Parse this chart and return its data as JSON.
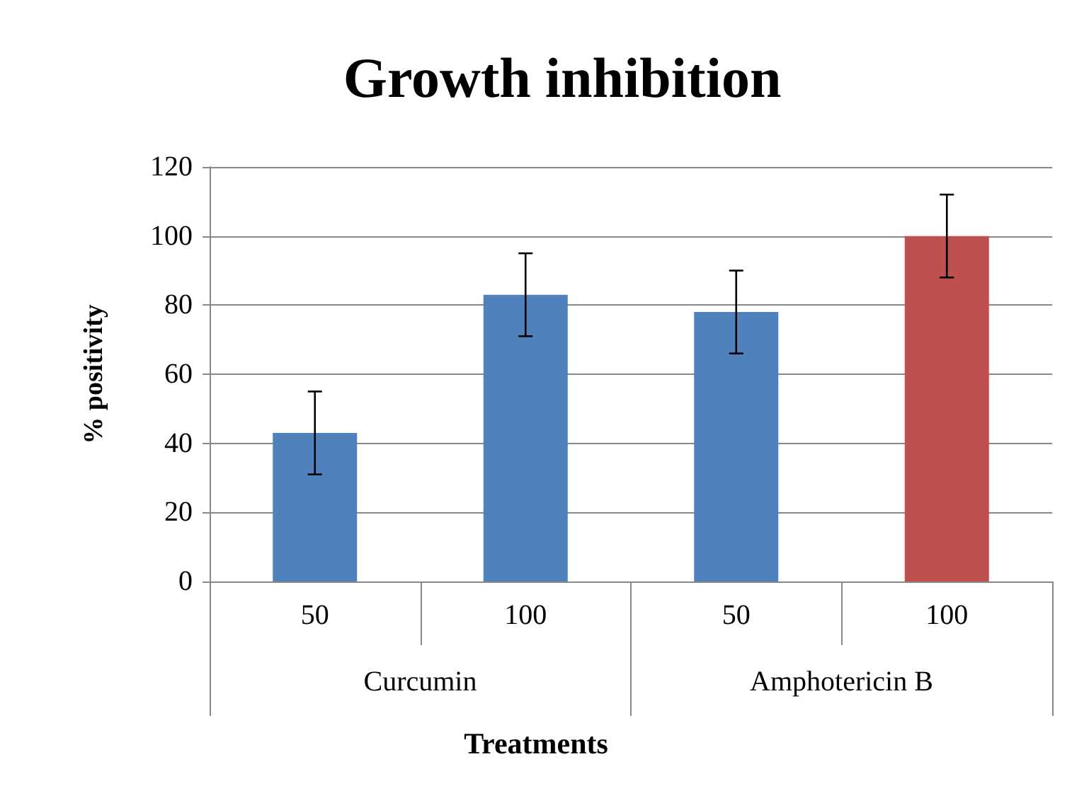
{
  "chart_data": {
    "type": "bar",
    "title": "Growth inhibition",
    "xlabel": "Treatments",
    "ylabel": "% positivity",
    "categories": [
      "50",
      "100",
      "50",
      "100"
    ],
    "annotations": [
      "Curcumin",
      "Amphotericin B"
    ],
    "series": [
      {
        "values": [
          43,
          83,
          78,
          100
        ],
        "colors": [
          "#4f81bd",
          "#4f81bd",
          "#4f81bd",
          "#c0504d"
        ],
        "errors": [
          12,
          12,
          12,
          12
        ]
      }
    ],
    "ylim": [
      0,
      120
    ],
    "yticks": [
      0,
      20,
      40,
      60,
      80,
      100,
      120
    ],
    "grid": "y"
  }
}
